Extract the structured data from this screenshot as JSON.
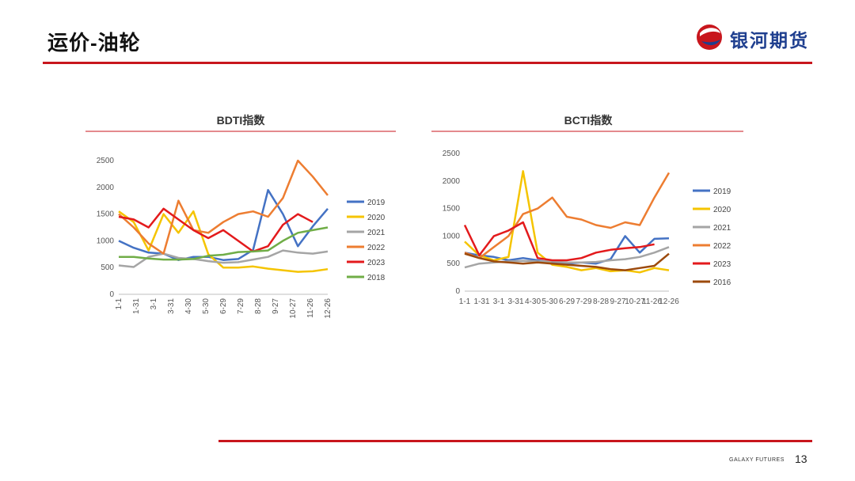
{
  "header": {
    "title": "运价-油轮",
    "logo_text": "银河期货"
  },
  "footer": {
    "brand": "GALAXY FUTURES",
    "page_number": "13"
  },
  "colors": {
    "accent": "#c8161d",
    "logo_blue": "#1f3f8f"
  },
  "chart_data": [
    {
      "type": "line",
      "title": "BDTI指数",
      "ylim": [
        0,
        2500
      ],
      "yticks": [
        "0",
        "500",
        "1000",
        "1500",
        "2000",
        "2500"
      ],
      "xticks": [
        "1-1",
        "1-31",
        "3-1",
        "3-31",
        "4-30",
        "5-30",
        "6-29",
        "7-29",
        "8-28",
        "9-27",
        "10-27",
        "11-26",
        "12-26"
      ],
      "series": [
        {
          "name": "2019",
          "color": "#4472c4",
          "values": [
            1000,
            870,
            780,
            760,
            640,
            700,
            700,
            640,
            660,
            830,
            1950,
            1500,
            900,
            1270,
            1600
          ]
        },
        {
          "name": "2020",
          "color": "#f5c400",
          "values": [
            1550,
            1350,
            820,
            1500,
            1150,
            1550,
            750,
            500,
            500,
            520,
            480,
            450,
            420,
            430,
            470
          ]
        },
        {
          "name": "2021",
          "color": "#a5a5a5",
          "values": [
            540,
            510,
            700,
            760,
            680,
            660,
            620,
            590,
            600,
            650,
            700,
            820,
            780,
            760,
            800
          ]
        },
        {
          "name": "2022",
          "color": "#ed7d31",
          "values": [
            1500,
            1250,
            950,
            760,
            1750,
            1200,
            1150,
            1350,
            1500,
            1550,
            1450,
            1800,
            2500,
            2200,
            1850
          ]
        },
        {
          "name": "2023",
          "color": "#e31a1c",
          "values": [
            1450,
            1400,
            1250,
            1600,
            1400,
            1200,
            1050,
            1200,
            1000,
            800,
            900,
            1300,
            1500,
            1350,
            null
          ]
        },
        {
          "name": "2018",
          "color": "#70ad47",
          "values": [
            700,
            700,
            670,
            650,
            650,
            660,
            720,
            740,
            790,
            800,
            820,
            1000,
            1150,
            1200,
            1250
          ]
        }
      ]
    },
    {
      "type": "line",
      "title": "BCTI指数",
      "ylim": [
        0,
        2500
      ],
      "yticks": [
        "0",
        "500",
        "1000",
        "1500",
        "2000",
        "2500"
      ],
      "xticks": [
        "1-1",
        "1-31",
        "3-1",
        "3-31",
        "4-30",
        "5-30",
        "6-29",
        "7-29",
        "8-28",
        "9-27",
        "10-27",
        "11-26",
        "12-26"
      ],
      "series": [
        {
          "name": "2019",
          "color": "#4472c4",
          "values": [
            700,
            650,
            620,
            560,
            600,
            560,
            520,
            500,
            520,
            500,
            580,
            1000,
            700,
            950,
            960
          ]
        },
        {
          "name": "2020",
          "color": "#f5c400",
          "values": [
            900,
            650,
            560,
            620,
            2180,
            700,
            480,
            440,
            380,
            420,
            360,
            380,
            340,
            420,
            380
          ]
        },
        {
          "name": "2021",
          "color": "#a5a5a5",
          "values": [
            430,
            500,
            520,
            540,
            550,
            540,
            540,
            520,
            520,
            530,
            560,
            580,
            620,
            700,
            800
          ]
        },
        {
          "name": "2022",
          "color": "#ed7d31",
          "values": [
            700,
            600,
            800,
            1000,
            1400,
            1500,
            1700,
            1350,
            1300,
            1200,
            1150,
            1250,
            1200,
            1700,
            2150
          ]
        },
        {
          "name": "2023",
          "color": "#e31a1c",
          "values": [
            1200,
            650,
            1000,
            1100,
            1250,
            600,
            560,
            560,
            600,
            700,
            750,
            780,
            800,
            850,
            null
          ]
        },
        {
          "name": "2016",
          "color": "#9c4a0c",
          "values": [
            680,
            600,
            540,
            520,
            500,
            520,
            500,
            480,
            460,
            440,
            400,
            380,
            420,
            460,
            680
          ]
        }
      ]
    }
  ]
}
